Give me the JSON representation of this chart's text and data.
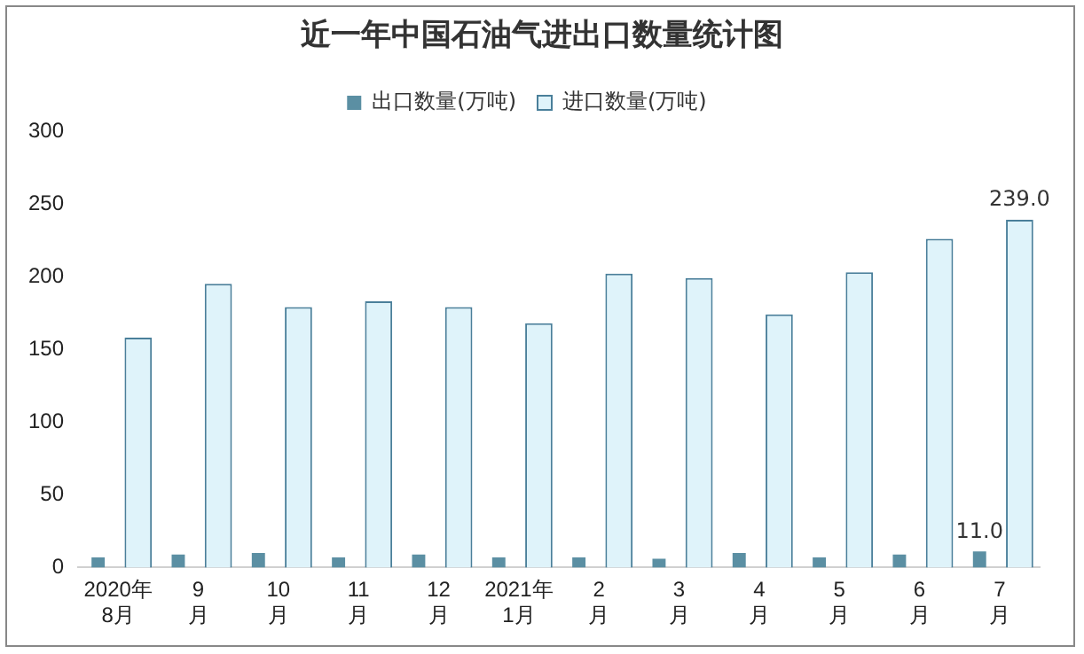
{
  "chart_data": {
    "type": "bar",
    "title": "近一年中国石油气进出口数量统计图",
    "categories": [
      "2020年\n8月",
      "9\n月",
      "10\n月",
      "11\n月",
      "12\n月",
      "2021年\n1月",
      "2\n月",
      "3\n月",
      "4\n月",
      "5\n月",
      "6\n月",
      "7\n月"
    ],
    "series": [
      {
        "name": "进口数量(万吨)",
        "color": "#dff3fa",
        "values": [
          158,
          195,
          179,
          183,
          179,
          168,
          202,
          199,
          174,
          203,
          226,
          239
        ],
        "value_labels": [
          null,
          null,
          null,
          null,
          null,
          null,
          null,
          null,
          null,
          null,
          null,
          "239.0"
        ]
      },
      {
        "name": "出口数量(万吨)",
        "color": "#5b8fa3",
        "values": [
          7,
          9,
          10,
          7,
          9,
          7,
          7,
          6,
          10,
          7,
          9,
          11
        ],
        "value_labels": [
          null,
          null,
          null,
          null,
          null,
          null,
          null,
          null,
          null,
          null,
          null,
          "11.0"
        ]
      }
    ],
    "ylim": [
      0,
      300
    ],
    "yticks": [
      0,
      50,
      100,
      150,
      200,
      250,
      300
    ],
    "grid": false,
    "legend": "top"
  }
}
